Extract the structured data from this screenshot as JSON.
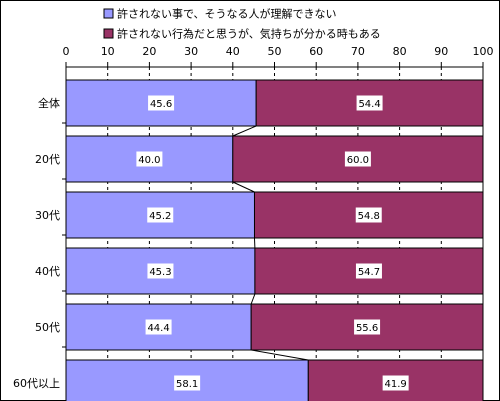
{
  "chart_data": {
    "type": "bar",
    "stacked": "percent",
    "orientation": "horizontal",
    "categories": [
      "全体",
      "20代",
      "30代",
      "40代",
      "50代",
      "60代以上"
    ],
    "series": [
      {
        "name": "許されない事で、そうなる人が理解できない",
        "values": [
          45.6,
          40.0,
          45.2,
          45.3,
          44.4,
          58.1
        ],
        "color": "#9999ff"
      },
      {
        "name": "許されない行為だと思うが、気持ちが分かる時もある",
        "values": [
          54.4,
          60.0,
          54.8,
          54.7,
          55.6,
          41.9
        ],
        "color": "#993366"
      }
    ],
    "value_labels": [
      [
        "45.6",
        "40.0",
        "45.2",
        "45.3",
        "44.4",
        "58.1"
      ],
      [
        "54.4",
        "60.0",
        "54.8",
        "54.7",
        "55.6",
        "41.9"
      ]
    ],
    "xlim": [
      0,
      100
    ],
    "xticks": [
      "0",
      "10",
      "20",
      "30",
      "40",
      "50",
      "60",
      "70",
      "80",
      "90",
      "100"
    ],
    "grid": "dashed vertical",
    "legend_position": "top",
    "series_lines": true
  }
}
